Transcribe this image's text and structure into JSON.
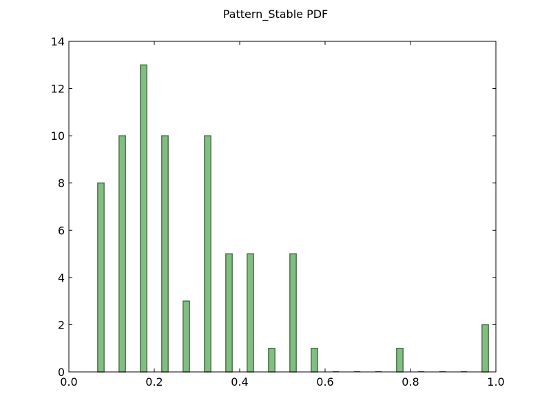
{
  "chart_data": {
    "type": "bar",
    "title": "Pattern_Stable PDF",
    "xlabel": "",
    "ylabel": "",
    "xlim": [
      0.0,
      1.0
    ],
    "ylim": [
      0,
      14
    ],
    "grid": false,
    "x_ticks": [
      "0.0",
      "0.2",
      "0.4",
      "0.6",
      "0.8",
      "1.0"
    ],
    "y_ticks": [
      "0",
      "2",
      "4",
      "6",
      "8",
      "10",
      "12",
      "14"
    ],
    "x": [
      0.075,
      0.125,
      0.175,
      0.225,
      0.275,
      0.325,
      0.375,
      0.425,
      0.475,
      0.525,
      0.575,
      0.625,
      0.675,
      0.725,
      0.775,
      0.825,
      0.875,
      0.925,
      0.975
    ],
    "values": [
      8,
      10,
      13,
      10,
      3,
      10,
      5,
      5,
      1,
      5,
      1,
      0,
      0,
      0,
      1,
      0,
      0,
      0,
      2
    ],
    "bar_width": 0.015,
    "colors": {
      "bar_fill": "#80bf80",
      "bar_edge": "#4f6f4f",
      "axis": "#000000",
      "background": "#ffffff"
    }
  }
}
